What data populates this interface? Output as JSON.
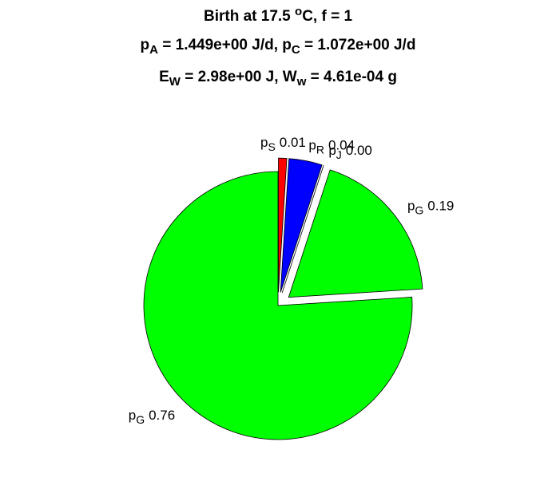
{
  "chart_data": {
    "type": "pie",
    "title": [
      [
        {
          "text": "Birth at 17.5 "
        },
        {
          "text": "o",
          "shift": "sup"
        },
        {
          "text": "C, f = 1"
        }
      ],
      [
        {
          "text": "p"
        },
        {
          "text": "A",
          "shift": "sub"
        },
        {
          "text": " = 1.449e+00 J/d, p"
        },
        {
          "text": "C",
          "shift": "sub"
        },
        {
          "text": " = 1.072e+00 J/d"
        }
      ],
      [
        {
          "text": "E"
        },
        {
          "text": "W",
          "shift": "sub"
        },
        {
          "text": " = 2.98e+00 J, W"
        },
        {
          "text": "w",
          "shift": "sub"
        },
        {
          "text": " = 4.61e-04 g"
        }
      ]
    ],
    "labels": [
      {
        "base": "p",
        "sub": "S"
      },
      {
        "base": "p",
        "sub": "R"
      },
      {
        "base": "p",
        "sub": "J"
      },
      {
        "base": "p",
        "sub": "G"
      },
      {
        "base": "p",
        "sub": "G"
      }
    ],
    "values": [
      0.01,
      0.04,
      0,
      0.19,
      0.76
    ],
    "value_labels": [
      "0.01",
      "0.04",
      "0.00",
      "0.19",
      "0.76"
    ],
    "colors": [
      "#ff0000",
      "#0000ff",
      "#ff00ff",
      "#00ff00",
      "#00ff00"
    ],
    "explode": [
      true,
      true,
      true,
      true,
      false
    ]
  }
}
